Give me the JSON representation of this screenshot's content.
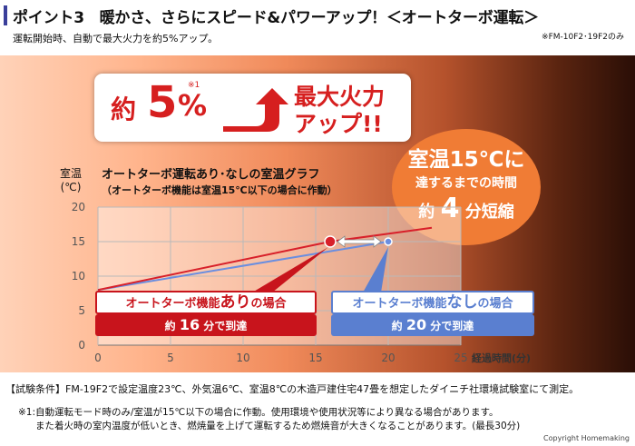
{
  "header": {
    "title": "ポイント3　暖かさ、さらにスピード&パワーアップ！＜オートターボ運転＞",
    "subtitle": "運転開始時、自動で最大火力を約5%アップ。",
    "model_note": "※FM-10F2･19F2のみ"
  },
  "claim": {
    "prefix": "約",
    "number": "5",
    "percent": "%",
    "footnote_mark": "※1",
    "line1": "最大火力",
    "line2": "アップ!!"
  },
  "badge": {
    "line1": "室温15℃に",
    "line2": "達するまでの時間",
    "prefix": "約",
    "number": "4",
    "suffix": "分短縮"
  },
  "graph_title": {
    "main": "オートターボ運転あり･なしの室温グラフ",
    "sub": "（オートターボ機能は室温15℃以下の場合に作動）"
  },
  "chart_data": {
    "type": "line",
    "ylabel": "室温\n(℃)",
    "xlabel": "経過時間(分)",
    "xlim": [
      0,
      25
    ],
    "ylim": [
      0,
      20
    ],
    "x_ticks": [
      0,
      5,
      10,
      15,
      20,
      25
    ],
    "y_ticks": [
      0,
      5,
      10,
      15,
      20
    ],
    "series": [
      {
        "name": "オートターボ機能ありの場合",
        "color": "#d8202a",
        "points": [
          [
            0,
            8
          ],
          [
            16,
            15
          ],
          [
            23,
            17
          ]
        ]
      },
      {
        "name": "オートターボ機能なしの場合",
        "color": "#6a8ee0",
        "points": [
          [
            0,
            8
          ],
          [
            20,
            15
          ]
        ]
      }
    ],
    "markers": [
      {
        "x": 16,
        "y": 15,
        "color": "#d8202a"
      },
      {
        "x": 20,
        "y": 15,
        "color": "#6a8ee0"
      }
    ]
  },
  "box_on": {
    "label_a": "オートターボ機能",
    "label_b": "あり",
    "label_c": "の場合",
    "time_a": "約 ",
    "time_num": "16",
    "time_b": " 分で到達"
  },
  "box_off": {
    "label_a": "オートターボ機能",
    "label_b": "なし",
    "label_c": "の場合",
    "time_a": "約 ",
    "time_num": "20",
    "time_b": " 分で到達"
  },
  "conditions": "【試験条件】FM-19F2で設定温度23℃、外気温6℃、室温8℃の木造戸建住宅47畳を想定したダイニチ社環境試験室にて測定。",
  "notes": [
    "※1:自動運転モード時のみ/室温が15℃以下の場合に作動。使用環境や使用状況等により異なる場合があります。",
    "また着火時の室内温度が低いとき、燃焼量を上げて運転するため燃焼音が大きくなることがあります。(最長30分)"
  ],
  "copyright": "Copyright Homemaking",
  "colors": {
    "accent_red": "#d61f1f",
    "accent_blue": "#5a7fd0",
    "badge_orange": "#f07c35",
    "header_bar": "#3a3f9a"
  }
}
